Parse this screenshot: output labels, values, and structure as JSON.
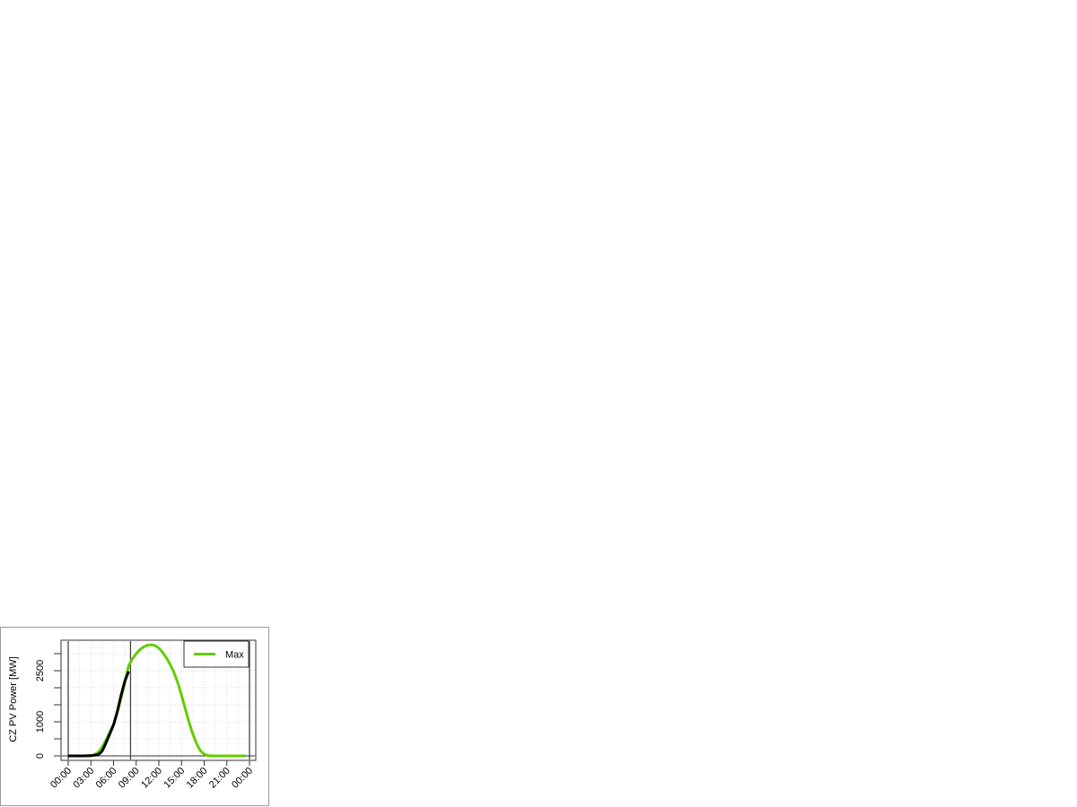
{
  "chart_data": {
    "type": "line",
    "title": "",
    "xlabel": "",
    "ylabel": "CZ PV Power [MW]",
    "x_tick_labels": [
      "00:00",
      "03:00",
      "06:00",
      "09:00",
      "12:00",
      "15:00",
      "18:00",
      "21:00",
      "00:00"
    ],
    "x_range_hours": [
      0,
      24
    ],
    "y_ticks": [
      0,
      500,
      1000,
      1500,
      2000,
      2500,
      3000
    ],
    "y_tick_labels": [
      "0",
      "1000",
      "2500"
    ],
    "ylim": [
      0,
      3300
    ],
    "grid": true,
    "current_time_hours": 8.25,
    "legend": {
      "position": "top-right",
      "entries": [
        {
          "label": "Max",
          "color": "#66cc00"
        }
      ]
    },
    "series": [
      {
        "name": "Max",
        "color": "#66cc00",
        "x": [
          0,
          1,
          2,
          3,
          3.5,
          4,
          4.5,
          5,
          5.5,
          6,
          6.5,
          7,
          7.5,
          8,
          8.5,
          9,
          9.5,
          10,
          10.5,
          11,
          11.5,
          12,
          12.5,
          13,
          13.5,
          14,
          14.5,
          15,
          15.5,
          16,
          16.5,
          17,
          17.5,
          18,
          18.5,
          19,
          20,
          21,
          22,
          23,
          23.5
        ],
        "y": [
          0,
          0,
          0,
          0,
          40,
          110,
          260,
          470,
          700,
          920,
          1280,
          1700,
          2150,
          2650,
          2850,
          3000,
          3120,
          3200,
          3250,
          3260,
          3240,
          3160,
          3040,
          2880,
          2680,
          2450,
          2150,
          1780,
          1380,
          980,
          640,
          360,
          150,
          50,
          10,
          0,
          0,
          0,
          0,
          0,
          0
        ]
      },
      {
        "color": "#000000",
        "x": [
          0,
          1,
          2,
          3,
          3.5,
          4,
          4.5,
          5,
          5.5,
          6,
          6.5,
          7,
          7.5,
          8
        ],
        "y": [
          0,
          0,
          0,
          10,
          20,
          40,
          140,
          380,
          640,
          910,
          1300,
          1780,
          2200,
          2480
        ]
      }
    ]
  }
}
